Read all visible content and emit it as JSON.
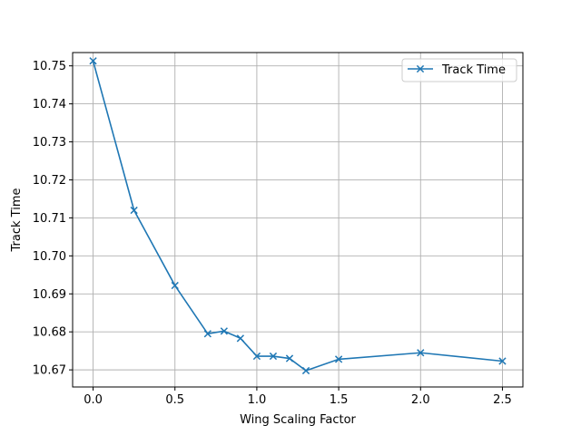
{
  "chart_data": {
    "type": "line",
    "title": "",
    "xlabel": "Wing Scaling Factor",
    "ylabel": "Track Time",
    "xlim": [
      -0.125,
      2.625
    ],
    "ylim": [
      10.6655,
      10.7535
    ],
    "xticks": [
      0.0,
      0.5,
      1.0,
      1.5,
      2.0,
      2.5
    ],
    "xtick_labels": [
      "0.0",
      "0.5",
      "1.0",
      "1.5",
      "2.0",
      "2.5"
    ],
    "yticks": [
      10.67,
      10.68,
      10.69,
      10.7,
      10.71,
      10.72,
      10.73,
      10.74,
      10.75
    ],
    "ytick_labels": [
      "10.67",
      "10.68",
      "10.69",
      "10.70",
      "10.71",
      "10.72",
      "10.73",
      "10.74",
      "10.75"
    ],
    "grid": true,
    "legend_position": "top-right",
    "series": [
      {
        "name": "Track Time",
        "color": "#1f77b4",
        "marker": "x",
        "x": [
          0.0,
          0.25,
          0.5,
          0.7,
          0.8,
          0.9,
          1.0,
          1.1,
          1.2,
          1.3,
          1.5,
          2.0,
          2.5
        ],
        "y": [
          10.7513,
          10.712,
          10.6922,
          10.6795,
          10.6802,
          10.6783,
          10.6736,
          10.6736,
          10.673,
          10.6698,
          10.6728,
          10.6745,
          10.6723
        ]
      }
    ]
  }
}
